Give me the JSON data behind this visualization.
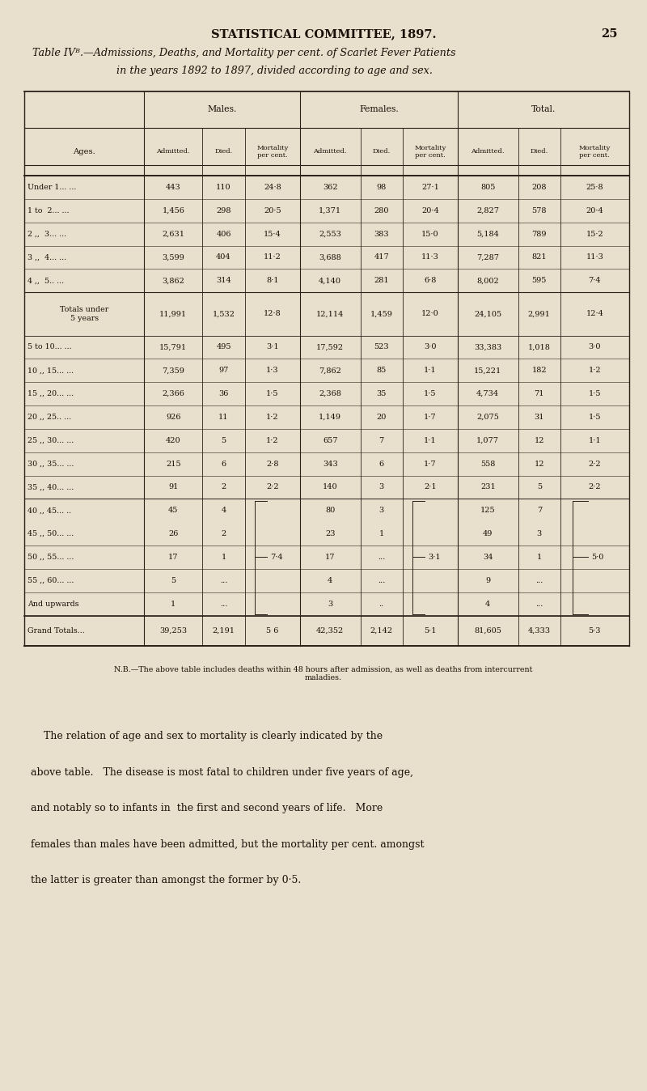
{
  "page_header": "STATISTICAL COMMITTEE, 1897.",
  "page_number": "25",
  "table_title_line1": "Table IVᴮ.—Admissions, Deaths, and Mortality per cent. of Scarlet Fever Patients",
  "table_title_line2": "in the years 1892 to 1897, divided according to age and sex.",
  "rows": [
    {
      "age": "Under 1... ...",
      "m_adm": "443",
      "m_die": "110",
      "m_mor": "24·8",
      "f_adm": "362",
      "f_die": "98",
      "f_mor": "27·1",
      "t_adm": "805",
      "t_die": "208",
      "t_mor": "25·8"
    },
    {
      "age": "1 to  2... ...",
      "m_adm": "1,456",
      "m_die": "298",
      "m_mor": "20·5",
      "f_adm": "1,371",
      "f_die": "280",
      "f_mor": "20·4",
      "t_adm": "2,827",
      "t_die": "578",
      "t_mor": "20·4"
    },
    {
      "age": "2 ,,  3... ...",
      "m_adm": "2,631",
      "m_die": "406",
      "m_mor": "15·4",
      "f_adm": "2,553",
      "f_die": "383",
      "f_mor": "15·0",
      "t_adm": "5,184",
      "t_die": "789",
      "t_mor": "15·2"
    },
    {
      "age": "3 ,,  4... ...",
      "m_adm": "3,599",
      "m_die": "404",
      "m_mor": "11·2",
      "f_adm": "3,688",
      "f_die": "417",
      "f_mor": "11·3",
      "t_adm": "7,287",
      "t_die": "821",
      "t_mor": "11·3"
    },
    {
      "age": "4 ,,  5.. ...",
      "m_adm": "3,862",
      "m_die": "314",
      "m_mor": "8·1",
      "f_adm": "4,140",
      "f_die": "281",
      "f_mor": "6·8",
      "t_adm": "8,002",
      "t_die": "595",
      "t_mor": "7·4"
    },
    {
      "age": "Totals under\n5 years",
      "m_adm": "11,991",
      "m_die": "1,532",
      "m_mor": "12·8",
      "f_adm": "12,114",
      "f_die": "1,459",
      "f_mor": "12·0",
      "t_adm": "24,105",
      "t_die": "2,991",
      "t_mor": "12·4",
      "special": true
    },
    {
      "age": "5 to 10... ...",
      "m_adm": "15,791",
      "m_die": "495",
      "m_mor": "3·1",
      "f_adm": "17,592",
      "f_die": "523",
      "f_mor": "3·0",
      "t_adm": "33,383",
      "t_die": "1,018",
      "t_mor": "3·0"
    },
    {
      "age": "10 ,, 15... ...",
      "m_adm": "7,359",
      "m_die": "97",
      "m_mor": "1·3",
      "f_adm": "7,862",
      "f_die": "85",
      "f_mor": "1·1",
      "t_adm": "15,221",
      "t_die": "182",
      "t_mor": "1·2"
    },
    {
      "age": "15 ,, 20... ...",
      "m_adm": "2,366",
      "m_die": "36",
      "m_mor": "1·5",
      "f_adm": "2,368",
      "f_die": "35",
      "f_mor": "1·5",
      "t_adm": "4,734",
      "t_die": "71",
      "t_mor": "1·5"
    },
    {
      "age": "20 ,, 25.. ...",
      "m_adm": "926",
      "m_die": "11",
      "m_mor": "1·2",
      "f_adm": "1,149",
      "f_die": "20",
      "f_mor": "1·7",
      "t_adm": "2,075",
      "t_die": "31",
      "t_mor": "1·5"
    },
    {
      "age": "25 ,, 30... ...",
      "m_adm": "420",
      "m_die": "5",
      "m_mor": "1·2",
      "f_adm": "657",
      "f_die": "7",
      "f_mor": "1·1",
      "t_adm": "1,077",
      "t_die": "12",
      "t_mor": "1·1"
    },
    {
      "age": "30 ,, 35... ...",
      "m_adm": "215",
      "m_die": "6",
      "m_mor": "2·8",
      "f_adm": "343",
      "f_die": "6",
      "f_mor": "1·7",
      "t_adm": "558",
      "t_die": "12",
      "t_mor": "2·2"
    },
    {
      "age": "35 ,, 40... ...",
      "m_adm": "91",
      "m_die": "2",
      "m_mor": "2·2",
      "f_adm": "140",
      "f_die": "3",
      "f_mor": "2·1",
      "t_adm": "231",
      "t_die": "5",
      "t_mor": "2·2"
    },
    {
      "age": "40 ,, 45... ..",
      "m_adm": "45",
      "m_die": "4",
      "m_mor": "",
      "f_adm": "80",
      "f_die": "3",
      "f_mor": "",
      "t_adm": "125",
      "t_die": "7",
      "t_mor": "",
      "bracket_grp": true
    },
    {
      "age": "45 ,, 50... ...",
      "m_adm": "26",
      "m_die": "2",
      "m_mor": "",
      "f_adm": "23",
      "f_die": "1",
      "f_mor": "",
      "t_adm": "49",
      "t_die": "3",
      "t_mor": "",
      "bracket_grp": true
    },
    {
      "age": "50 ,, 55... ...",
      "m_adm": "17",
      "m_die": "1",
      "m_mor": "7·4",
      "f_adm": "17",
      "f_die": "...",
      "f_mor": "3·1",
      "t_adm": "34",
      "t_die": "1",
      "t_mor": "5·0",
      "bracket_grp": true,
      "bracket_mid": true
    },
    {
      "age": "55 ,, 60... ...",
      "m_adm": "5",
      "m_die": "...",
      "m_mor": "",
      "f_adm": "4",
      "f_die": "...",
      "f_mor": "",
      "t_adm": "9",
      "t_die": "...",
      "t_mor": "",
      "bracket_grp": true
    },
    {
      "age": "And upwards",
      "m_adm": "1",
      "m_die": "...",
      "m_mor": "",
      "f_adm": "3",
      "f_die": "..",
      "f_mor": "",
      "t_adm": "4",
      "t_die": "...",
      "t_mor": "",
      "bracket_grp": true
    },
    {
      "age": "Grand Totals...",
      "m_adm": "39,253",
      "m_die": "2,191",
      "m_mor": "5 6",
      "f_adm": "42,352",
      "f_die": "2,142",
      "f_mor": "5·1",
      "t_adm": "81,605",
      "t_die": "4,333",
      "t_mor": "5·3",
      "grand": true
    }
  ],
  "bracket_vals": {
    "m": "7·4",
    "f": "3·1",
    "t": "5·0"
  },
  "nb_text": "N.B.—The above table includes deaths within 48 hours after admission, as well as deaths from intercurrent\nmaladies.",
  "body_text_lines": [
    "    The relation of age and sex to mortality is clearly indicated by the",
    "above table.   The disease is most fatal to children under five years of age,",
    "and notably so to infants in  the first and second years of life.   More",
    "females than males have been admitted, but the mortality per cent. amongst",
    "the latter is greater than amongst the former by 0·5."
  ],
  "bg_color": "#e8e0cc",
  "text_color": "#1a1008",
  "line_color": "#2a2018"
}
